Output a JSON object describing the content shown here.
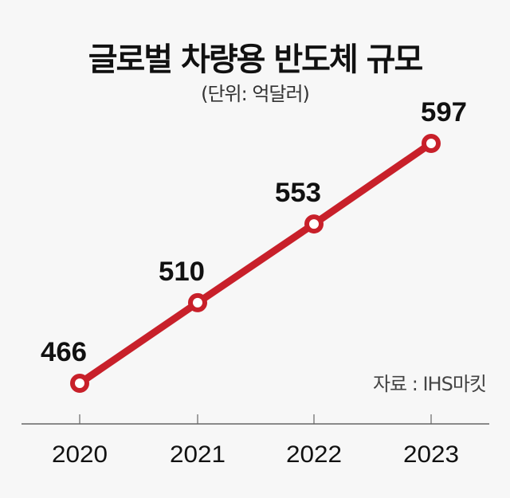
{
  "chart_data": {
    "type": "line",
    "title": "글로벌 차량용 반도체 규모",
    "subtitle": "(단위: 억달러)",
    "source": "자료 : IHS마킷",
    "categories": [
      "2020",
      "2021",
      "2022",
      "2023"
    ],
    "series": [
      {
        "values": [
          466,
          510,
          553,
          597
        ]
      }
    ],
    "grid": false,
    "color": "#c8202a"
  }
}
